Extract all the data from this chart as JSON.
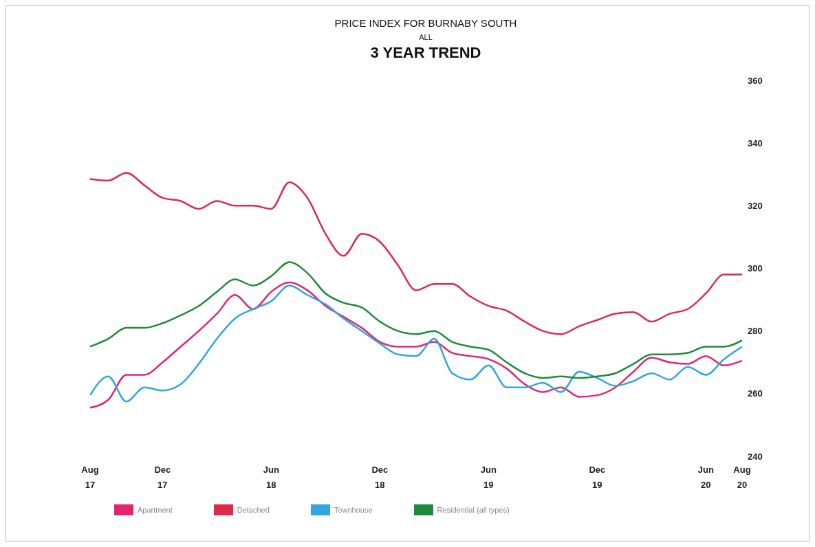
{
  "chart_data": {
    "type": "line",
    "title": "PRICE INDEX FOR BURNABY SOUTH",
    "subtitle": "ALL",
    "annotations": [
      "3 YEAR TREND"
    ],
    "categories": [
      "Aug 17",
      null,
      null,
      null,
      "Dec 17",
      null,
      null,
      null,
      null,
      null,
      "Jun 18",
      null,
      null,
      null,
      null,
      null,
      "Dec 18",
      null,
      null,
      null,
      null,
      null,
      "Jun 19",
      null,
      null,
      null,
      null,
      null,
      "Dec 19",
      null,
      null,
      null,
      null,
      null,
      "Jun 20",
      null,
      "Aug 20"
    ],
    "series": [
      {
        "name": "Apartment",
        "color": "#e5246f",
        "values": [
          255.5,
          258,
          266,
          266,
          270,
          275,
          280,
          285.5,
          291.5,
          287,
          292.5,
          295.5,
          293,
          288,
          284.5,
          281,
          276.5,
          275,
          275,
          276.5,
          273,
          272,
          271,
          268,
          263,
          260.5,
          262,
          259,
          259.5,
          262,
          267,
          271.5,
          270,
          269.5,
          272,
          269,
          270.5
        ]
      },
      {
        "name": "Detached",
        "color": "#e0284a",
        "values": [
          328.5,
          328,
          330.5,
          326.5,
          322.5,
          321.5,
          319,
          321.5,
          320,
          320,
          319,
          327.5,
          322.5,
          311,
          304,
          311,
          308.5,
          301,
          293,
          295,
          295,
          291,
          288,
          286.5,
          283,
          280,
          279,
          281.5,
          283.5,
          285.5,
          286,
          283,
          285.5,
          287,
          292,
          298,
          298
        ]
      },
      {
        "name": "Townhouse",
        "color": "#2fa6e0",
        "values": [
          259.5,
          265.5,
          257.5,
          262,
          261,
          263,
          269.5,
          277.5,
          284,
          287,
          289.5,
          294.5,
          291.5,
          288.5,
          284,
          280,
          276,
          272.5,
          272,
          277.5,
          266.5,
          264.5,
          269,
          262,
          262,
          263.5,
          260.5,
          267,
          265,
          262.5,
          264,
          266.5,
          264.5,
          268.5,
          266,
          271,
          275
        ]
      },
      {
        "name": "Residential (all types)",
        "color": "#1e8a3c",
        "values": [
          275,
          277.5,
          281,
          281,
          282.5,
          285,
          288,
          292.5,
          296.5,
          294.5,
          297.5,
          302,
          298.5,
          292,
          289,
          287.5,
          283,
          280,
          279,
          280,
          276.5,
          275,
          274,
          270,
          266.5,
          265,
          265.5,
          265,
          265.5,
          266.5,
          269.5,
          272.5,
          272.5,
          273,
          275,
          275,
          277
        ]
      }
    ],
    "ylim": [
      240,
      360
    ],
    "yticks": [
      240,
      260,
      280,
      300,
      320,
      340,
      360
    ],
    "grid": false,
    "legend": "bottom left",
    "marker": "none",
    "line_style": "solid"
  }
}
